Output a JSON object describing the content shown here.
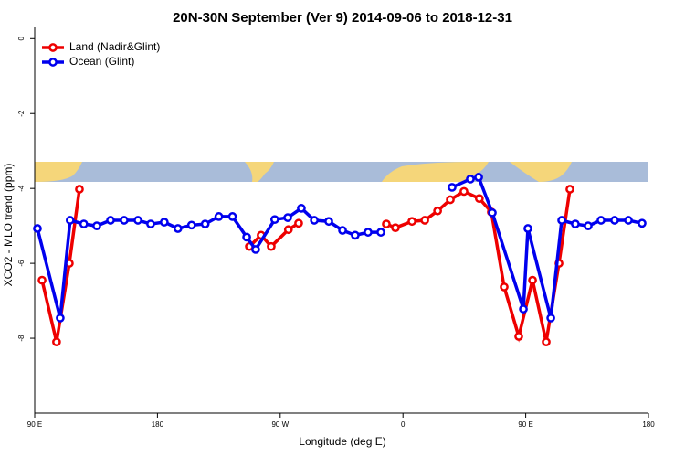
{
  "chart_data": {
    "type": "line",
    "title": "20N-30N September (Ver 9)   2014-09-06 to 2018-12-31",
    "x_label": "Longitude (deg E)",
    "y_label": "XCO2 - MLO trend (ppm)",
    "xlim": [
      90,
      540
    ],
    "xticks": [
      {
        "value": 90,
        "label": "90 E"
      },
      180,
      {
        "value": 270,
        "label": "90 W"
      },
      {
        "value": 360,
        "label": "0"
      },
      {
        "value": 450,
        "label": "90 E"
      },
      180
    ],
    "ylim": [
      -10,
      0.3
    ],
    "yticks": [
      0,
      -2,
      -4,
      -6,
      -8
    ],
    "legend": "top-left",
    "series": [
      {
        "name": "Land (Nadir&Glint)",
        "color": "#ee0000",
        "x": [
          95.4,
          106,
          115.4,
          122.8,
          null,
          247.4,
          256,
          263.4,
          276,
          283.5,
          null,
          347.8,
          354.5,
          366.6,
          376,
          385.4,
          394.7,
          404.7,
          416,
          424.8,
          434.2,
          444.9,
          455,
          465,
          474.4,
          482.4
        ],
        "values": [
          -6.45,
          -8.1,
          -6.0,
          -4.02,
          null,
          -5.55,
          -5.25,
          -5.55,
          -5.1,
          -4.93,
          null,
          -4.95,
          -5.05,
          -4.88,
          -4.85,
          -4.6,
          -4.3,
          -4.08,
          -4.27,
          -4.63,
          -6.63,
          -7.95,
          -6.45,
          -8.1,
          -6.0,
          -4.02
        ]
      },
      {
        "name": "Ocean (Glint)",
        "color": "#0000ee",
        "x": [
          92,
          108.7,
          116,
          126,
          135.5,
          145.6,
          155.6,
          165.7,
          175,
          185,
          195,
          205,
          215,
          225,
          235,
          245.4,
          252,
          266,
          275.5,
          285.5,
          295,
          305.6,
          315.7,
          325,
          334.4,
          343.8,
          null,
          396,
          409.4,
          415.5,
          425.5,
          448.3,
          451.6,
          468.4,
          476.4,
          486.4,
          495.8,
          505.2,
          515.2,
          525.3,
          535.3
        ],
        "values": [
          -5.07,
          -7.46,
          -4.85,
          -4.95,
          -5.0,
          -4.85,
          -4.85,
          -4.85,
          -4.95,
          -4.9,
          -5.07,
          -4.98,
          -4.95,
          -4.75,
          -4.75,
          -5.3,
          -5.63,
          -4.83,
          -4.78,
          -4.53,
          -4.85,
          -4.88,
          -5.12,
          -5.25,
          -5.17,
          -5.17,
          null,
          -3.97,
          -3.75,
          -3.7,
          -4.65,
          -7.22,
          -5.07,
          -7.46,
          -4.85,
          -4.95,
          -5.0,
          -4.85,
          -4.85,
          -4.85,
          -4.93
        ]
      }
    ]
  }
}
